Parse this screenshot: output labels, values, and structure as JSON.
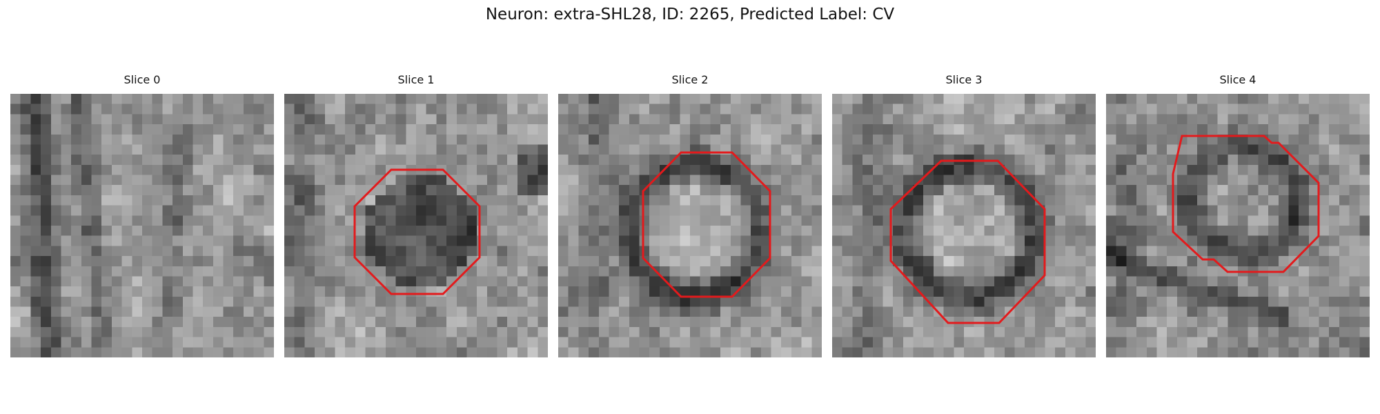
{
  "title": "Neuron: extra-SHL28, ID: 2265, Predicted Label: CV",
  "overlay_color": "#e31a1c",
  "slices": [
    {
      "label": "Slice 0",
      "seed": 11,
      "pattern": "streaks",
      "roi": false
    },
    {
      "label": "Slice 1",
      "seed": 23,
      "pattern": "dark-blob",
      "roi": true
    },
    {
      "label": "Slice 2",
      "seed": 37,
      "pattern": "ring",
      "roi": true
    },
    {
      "label": "Slice 3",
      "seed": 41,
      "pattern": "ring",
      "roi": true
    },
    {
      "label": "Slice 4",
      "seed": 59,
      "pattern": "ring-small",
      "roi": true
    }
  ]
}
